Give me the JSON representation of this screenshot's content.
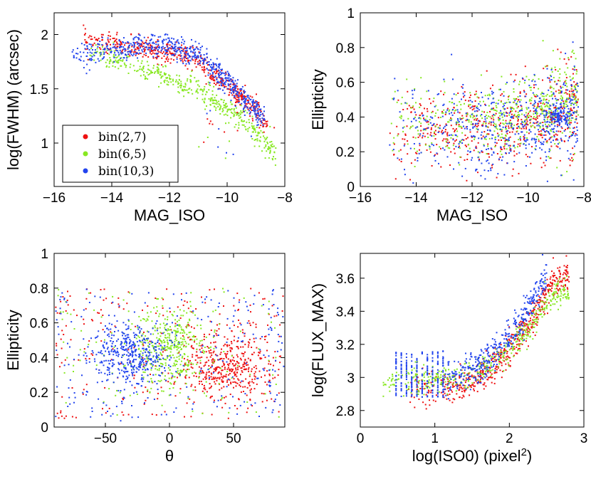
{
  "colors": {
    "red": "#ee1111",
    "green": "#88e822",
    "blue": "#2244ee"
  },
  "legend": [
    {
      "label": "bin(2,7)",
      "color": "#ee1111"
    },
    {
      "label": "bin(6,5)",
      "color": "#88e822"
    },
    {
      "label": "bin(10,3)",
      "color": "#2244ee"
    }
  ],
  "chart_data": [
    {
      "type": "scatter",
      "xlabel": "MAG_ISO",
      "ylabel": "log(FWHM) (arcsec)",
      "xlim": [
        -16,
        -8
      ],
      "ylim": [
        0.6,
        2.2
      ],
      "xticks": [
        -16,
        -14,
        -12,
        -10,
        -8
      ],
      "xticklabels": [
        "−16",
        "−14",
        "−12",
        "−10",
        "−8"
      ],
      "yticks": [
        1,
        1.5,
        2
      ],
      "yticklabels": [
        "1",
        "1.5",
        "2"
      ],
      "series": [
        {
          "name": "bin(2,7)",
          "x_range": [
            -15.0,
            -8.6
          ],
          "y_trend": "1.95 at -15 to 1.15 at -8.6, knee near -11"
        },
        {
          "name": "bin(6,5)",
          "x_range": [
            -14.8,
            -8.2
          ],
          "y_trend": "lower branch 1.85 to 1.45 then falling to 0.8"
        },
        {
          "name": "bin(10,3)",
          "x_range": [
            -15.4,
            -8.7
          ],
          "y_trend": "upper branch peaking 1.9 near -12.5"
        }
      ],
      "legend_position": "lower-left"
    },
    {
      "type": "scatter",
      "xlabel": "MAG_ISO",
      "ylabel": "Ellipticity",
      "xlim": [
        -16,
        -8
      ],
      "ylim": [
        0,
        1
      ],
      "xticks": [
        -16,
        -14,
        -12,
        -10,
        -8
      ],
      "xticklabels": [
        "−16",
        "−14",
        "−12",
        "−10",
        "−8"
      ],
      "yticks": [
        0,
        0.2,
        0.4,
        0.6,
        0.8,
        1
      ],
      "yticklabels": [
        "0",
        "0.2",
        "0.4",
        "0.6",
        "0.8",
        "1"
      ],
      "series": [
        {
          "name": "bin(2,7)",
          "x_range": [
            -15.0,
            -8.2
          ],
          "y_range": [
            0.05,
            0.8
          ]
        },
        {
          "name": "bin(6,5)",
          "x_range": [
            -15.0,
            -8.2
          ],
          "y_range": [
            0.05,
            0.8
          ]
        },
        {
          "name": "bin(10,3)",
          "x_range": [
            -15.2,
            -8.2
          ],
          "y_range": [
            0.05,
            0.8
          ],
          "cluster": "x=-8.9, y=0.41"
        }
      ]
    },
    {
      "type": "scatter",
      "xlabel": "θ",
      "ylabel": "Ellipticity",
      "xlim": [
        -90,
        90
      ],
      "ylim": [
        0,
        1
      ],
      "xticks": [
        -50,
        0,
        50
      ],
      "xticklabels": [
        "−50",
        "0",
        "50"
      ],
      "yticks": [
        0,
        0.2,
        0.4,
        0.6,
        0.8,
        1
      ],
      "yticklabels": [
        "0",
        "0.2",
        "0.4",
        "0.6",
        "0.8",
        "1"
      ],
      "series": [
        {
          "name": "bin(2,7)",
          "cluster_center": [
            45,
            0.35
          ]
        },
        {
          "name": "bin(6,5)",
          "cluster_center": [
            0,
            0.45
          ]
        },
        {
          "name": "bin(10,3)",
          "cluster_center": [
            -30,
            0.42
          ]
        }
      ]
    },
    {
      "type": "scatter",
      "xlabel": "log(ISO0) (pixel",
      "xlabel_sup": "2",
      "xlabel_end": ")",
      "ylabel": "log(FLUX_MAX)",
      "xlim": [
        0,
        3
      ],
      "ylim": [
        2.7,
        3.75
      ],
      "xticks": [
        0,
        1,
        2,
        3
      ],
      "xticklabels": [
        "0",
        "1",
        "2",
        "3"
      ],
      "yticks": [
        2.8,
        3,
        3.2,
        3.4,
        3.6
      ],
      "yticklabels": [
        "2.8",
        "3",
        "3.2",
        "3.4",
        "3.6"
      ],
      "series": [
        {
          "name": "bin(2,7)",
          "trend": "flat 2.95 below x=1.2, rising to 3.6 at x=2.8"
        },
        {
          "name": "bin(6,5)",
          "trend": "flat 2.95 below x=1.2, rising to 3.45 at x=2.8"
        },
        {
          "name": "bin(10,3)",
          "trend": "vertical strips at x 0.5-1.1, rising to 3.65 at x=2.5"
        }
      ]
    }
  ]
}
